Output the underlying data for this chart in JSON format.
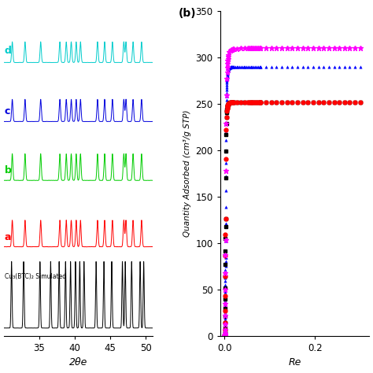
{
  "left_panel": {
    "xlim": [
      30,
      51
    ],
    "xticks": [
      35,
      40,
      45,
      50
    ],
    "xlabel": "2θe",
    "series_colors": [
      "#000000",
      "#FF0000",
      "#00CC00",
      "#0000DD",
      "#00CCCC"
    ],
    "series_labels": [
      "Cu₃(BTC)₂ Simulated",
      "a",
      "b",
      "c",
      "d"
    ],
    "label_colors": [
      "#000000",
      "#FF0000",
      "#00CC00",
      "#0000DD",
      "#00CCCC"
    ],
    "offsets": [
      0.0,
      0.55,
      1.0,
      1.4,
      1.8
    ],
    "amplitudes": [
      0.45,
      0.18,
      0.18,
      0.15,
      0.14
    ],
    "peak_positions_sim": [
      31.1,
      32.8,
      35.1,
      36.6,
      37.8,
      38.7,
      39.4,
      40.1,
      40.7,
      41.3,
      43.0,
      44.1,
      45.2,
      46.7,
      47.1,
      48.0,
      49.2,
      49.7
    ],
    "peak_positions_exp": [
      31.2,
      33.0,
      35.2,
      37.9,
      38.8,
      39.5,
      40.2,
      40.8,
      43.2,
      44.2,
      45.3,
      46.9,
      47.2,
      48.2,
      49.4
    ]
  },
  "right_panel": {
    "ylabel": "Quantity Adsorbed (cm³/g STP)",
    "xlabel": "Re",
    "xlim": [
      -0.01,
      0.32
    ],
    "ylim": [
      0,
      350
    ],
    "yticks": [
      0,
      50,
      100,
      150,
      200,
      250,
      300,
      350
    ],
    "xticks": [
      0.0,
      0.2
    ],
    "blue_plateau": 290,
    "red_plateau": 252,
    "pink_plateau": 310
  }
}
